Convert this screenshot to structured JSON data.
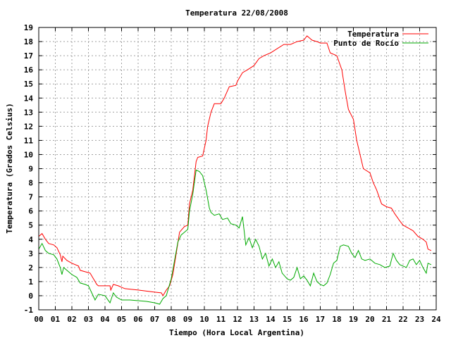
{
  "chart_data": {
    "type": "line",
    "title": "Temperatura 22/08/2008",
    "xlabel": "Tiempo (Hora Local Argentina)",
    "ylabel": "Temperatura (Grados Celsius)",
    "xlim": [
      0,
      24
    ],
    "ylim": [
      -1,
      19
    ],
    "x_tick_labels": [
      "00",
      "01",
      "02",
      "03",
      "04",
      "05",
      "06",
      "07",
      "08",
      "09",
      "10",
      "11",
      "12",
      "13",
      "14",
      "15",
      "16",
      "17",
      "18",
      "19",
      "20",
      "21",
      "22",
      "23",
      "24"
    ],
    "y_ticks": [
      -1,
      0,
      1,
      2,
      3,
      4,
      5,
      6,
      7,
      8,
      9,
      10,
      11,
      12,
      13,
      14,
      15,
      16,
      17,
      18,
      19
    ],
    "grid": true,
    "legend_position": "top-right",
    "series": [
      {
        "name": "Temperatura",
        "color": "#ff0000",
        "points": [
          [
            0.0,
            4.2
          ],
          [
            0.2,
            4.4
          ],
          [
            0.4,
            4.0
          ],
          [
            0.6,
            3.7
          ],
          [
            0.9,
            3.6
          ],
          [
            1.1,
            3.4
          ],
          [
            1.3,
            2.9
          ],
          [
            1.4,
            2.4
          ],
          [
            1.45,
            2.8
          ],
          [
            1.7,
            2.5
          ],
          [
            2.0,
            2.3
          ],
          [
            2.4,
            2.1
          ],
          [
            2.5,
            1.8
          ],
          [
            2.8,
            1.7
          ],
          [
            3.1,
            1.6
          ],
          [
            3.3,
            1.2
          ],
          [
            3.5,
            0.8
          ],
          [
            3.6,
            0.7
          ],
          [
            4.0,
            0.7
          ],
          [
            4.3,
            0.7
          ],
          [
            4.35,
            0.4
          ],
          [
            4.5,
            0.8
          ],
          [
            4.8,
            0.7
          ],
          [
            5.0,
            0.6
          ],
          [
            5.2,
            0.5
          ],
          [
            6.0,
            0.4
          ],
          [
            7.0,
            0.25
          ],
          [
            7.4,
            0.2
          ],
          [
            7.5,
            0.0
          ],
          [
            7.7,
            0.4
          ],
          [
            7.9,
            0.7
          ],
          [
            8.1,
            1.5
          ],
          [
            8.3,
            3.0
          ],
          [
            8.5,
            4.5
          ],
          [
            8.8,
            4.9
          ],
          [
            9.0,
            5.0
          ],
          [
            9.1,
            6.5
          ],
          [
            9.3,
            7.5
          ],
          [
            9.5,
            9.5
          ],
          [
            9.6,
            9.8
          ],
          [
            9.9,
            9.9
          ],
          [
            10.1,
            11.0
          ],
          [
            10.2,
            12.0
          ],
          [
            10.4,
            13.0
          ],
          [
            10.6,
            13.6
          ],
          [
            11.0,
            13.6
          ],
          [
            11.2,
            14.0
          ],
          [
            11.5,
            14.8
          ],
          [
            11.9,
            14.9
          ],
          [
            12.0,
            15.2
          ],
          [
            12.3,
            15.8
          ],
          [
            12.6,
            16.0
          ],
          [
            13.0,
            16.3
          ],
          [
            13.3,
            16.8
          ],
          [
            13.6,
            17.0
          ],
          [
            14.0,
            17.2
          ],
          [
            14.4,
            17.5
          ],
          [
            14.8,
            17.8
          ],
          [
            15.2,
            17.8
          ],
          [
            15.6,
            18.0
          ],
          [
            16.0,
            18.1
          ],
          [
            16.2,
            18.4
          ],
          [
            16.5,
            18.1
          ],
          [
            16.8,
            18.0
          ],
          [
            17.0,
            17.9
          ],
          [
            17.4,
            17.9
          ],
          [
            17.6,
            17.2
          ],
          [
            18.0,
            17.0
          ],
          [
            18.3,
            16.0
          ],
          [
            18.5,
            14.5
          ],
          [
            18.7,
            13.2
          ],
          [
            19.0,
            12.5
          ],
          [
            19.2,
            11.0
          ],
          [
            19.4,
            10.0
          ],
          [
            19.6,
            9.0
          ],
          [
            20.0,
            8.7
          ],
          [
            20.2,
            8.0
          ],
          [
            20.4,
            7.5
          ],
          [
            20.7,
            6.5
          ],
          [
            21.0,
            6.3
          ],
          [
            21.3,
            6.2
          ],
          [
            21.5,
            5.8
          ],
          [
            21.8,
            5.3
          ],
          [
            22.0,
            5.0
          ],
          [
            22.3,
            4.8
          ],
          [
            22.6,
            4.6
          ],
          [
            22.9,
            4.2
          ],
          [
            23.2,
            4.0
          ],
          [
            23.4,
            3.8
          ],
          [
            23.5,
            3.3
          ],
          [
            23.7,
            3.2
          ]
        ]
      },
      {
        "name": "Punto de Rocío",
        "color": "#00aa00",
        "points": [
          [
            0.0,
            3.3
          ],
          [
            0.2,
            3.7
          ],
          [
            0.4,
            3.2
          ],
          [
            0.6,
            3.0
          ],
          [
            0.9,
            2.9
          ],
          [
            1.1,
            2.6
          ],
          [
            1.3,
            2.0
          ],
          [
            1.4,
            1.5
          ],
          [
            1.5,
            2.0
          ],
          [
            1.8,
            1.7
          ],
          [
            2.0,
            1.5
          ],
          [
            2.3,
            1.3
          ],
          [
            2.5,
            0.9
          ],
          [
            2.8,
            0.8
          ],
          [
            3.0,
            0.7
          ],
          [
            3.2,
            0.2
          ],
          [
            3.4,
            -0.3
          ],
          [
            3.6,
            0.1
          ],
          [
            4.0,
            0.0
          ],
          [
            4.3,
            -0.5
          ],
          [
            4.5,
            0.2
          ],
          [
            4.7,
            -0.1
          ],
          [
            5.0,
            -0.3
          ],
          [
            5.5,
            -0.3
          ],
          [
            6.0,
            -0.35
          ],
          [
            6.5,
            -0.4
          ],
          [
            7.0,
            -0.5
          ],
          [
            7.3,
            -0.6
          ],
          [
            7.5,
            -0.2
          ],
          [
            7.7,
            0.0
          ],
          [
            8.0,
            1.2
          ],
          [
            8.2,
            2.5
          ],
          [
            8.4,
            3.8
          ],
          [
            8.6,
            4.3
          ],
          [
            8.8,
            4.5
          ],
          [
            9.0,
            4.7
          ],
          [
            9.1,
            6.0
          ],
          [
            9.3,
            7.2
          ],
          [
            9.5,
            8.9
          ],
          [
            9.7,
            8.8
          ],
          [
            9.9,
            8.5
          ],
          [
            10.1,
            7.5
          ],
          [
            10.3,
            6.2
          ],
          [
            10.4,
            5.9
          ],
          [
            10.6,
            5.7
          ],
          [
            10.9,
            5.8
          ],
          [
            11.1,
            5.4
          ],
          [
            11.4,
            5.5
          ],
          [
            11.6,
            5.1
          ],
          [
            11.9,
            5.0
          ],
          [
            12.1,
            4.8
          ],
          [
            12.3,
            5.6
          ],
          [
            12.5,
            3.6
          ],
          [
            12.7,
            4.1
          ],
          [
            12.9,
            3.4
          ],
          [
            13.1,
            4.0
          ],
          [
            13.3,
            3.5
          ],
          [
            13.5,
            2.6
          ],
          [
            13.7,
            3.0
          ],
          [
            13.9,
            2.1
          ],
          [
            14.1,
            2.6
          ],
          [
            14.3,
            2.0
          ],
          [
            14.5,
            2.4
          ],
          [
            14.7,
            1.6
          ],
          [
            15.0,
            1.2
          ],
          [
            15.2,
            1.1
          ],
          [
            15.4,
            1.3
          ],
          [
            15.6,
            2.0
          ],
          [
            15.8,
            1.2
          ],
          [
            16.0,
            1.4
          ],
          [
            16.2,
            1.1
          ],
          [
            16.4,
            0.7
          ],
          [
            16.6,
            1.6
          ],
          [
            16.8,
            1.0
          ],
          [
            17.0,
            0.8
          ],
          [
            17.2,
            0.7
          ],
          [
            17.4,
            0.9
          ],
          [
            17.6,
            1.5
          ],
          [
            17.8,
            2.3
          ],
          [
            18.0,
            2.5
          ],
          [
            18.2,
            3.5
          ],
          [
            18.4,
            3.6
          ],
          [
            18.7,
            3.5
          ],
          [
            18.9,
            3.0
          ],
          [
            19.1,
            2.7
          ],
          [
            19.3,
            3.2
          ],
          [
            19.5,
            2.6
          ],
          [
            19.7,
            2.5
          ],
          [
            20.0,
            2.6
          ],
          [
            20.3,
            2.3
          ],
          [
            20.6,
            2.2
          ],
          [
            20.9,
            2.0
          ],
          [
            21.2,
            2.1
          ],
          [
            21.4,
            3.0
          ],
          [
            21.6,
            2.5
          ],
          [
            21.8,
            2.2
          ],
          [
            22.0,
            2.1
          ],
          [
            22.2,
            2.0
          ],
          [
            22.4,
            2.5
          ],
          [
            22.6,
            2.6
          ],
          [
            22.8,
            2.2
          ],
          [
            23.0,
            2.5
          ],
          [
            23.2,
            2.0
          ],
          [
            23.4,
            1.6
          ],
          [
            23.5,
            2.3
          ],
          [
            23.7,
            2.2
          ]
        ]
      }
    ]
  }
}
